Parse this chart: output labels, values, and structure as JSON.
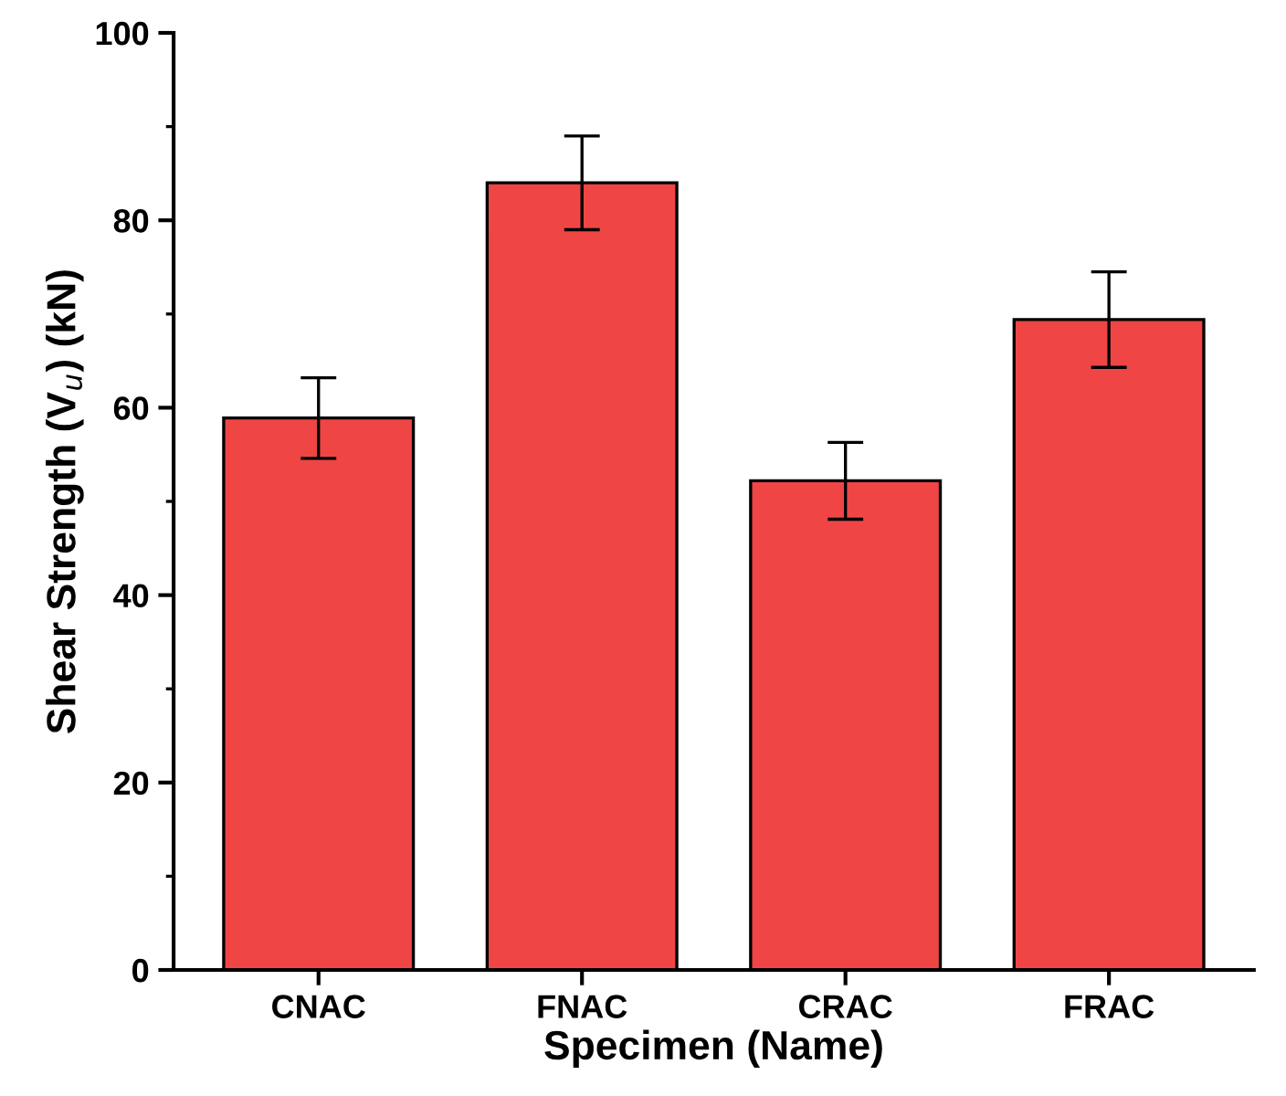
{
  "chart_data": {
    "type": "bar",
    "xlabel": "Specimen (Name)",
    "ylabel": "Shear Strength (V$_{u}$) (kN)",
    "categories": [
      "CNAC",
      "FNAC",
      "CRAC",
      "FRAC"
    ],
    "values": [
      58.9,
      84.0,
      52.2,
      69.4
    ],
    "errors": [
      4.3,
      5.0,
      4.1,
      5.1
    ],
    "color": "#f04545",
    "ylim": [
      0,
      100
    ],
    "yticks": [
      0,
      20,
      40,
      60,
      80,
      100
    ],
    "grid": false,
    "legend": false
  }
}
